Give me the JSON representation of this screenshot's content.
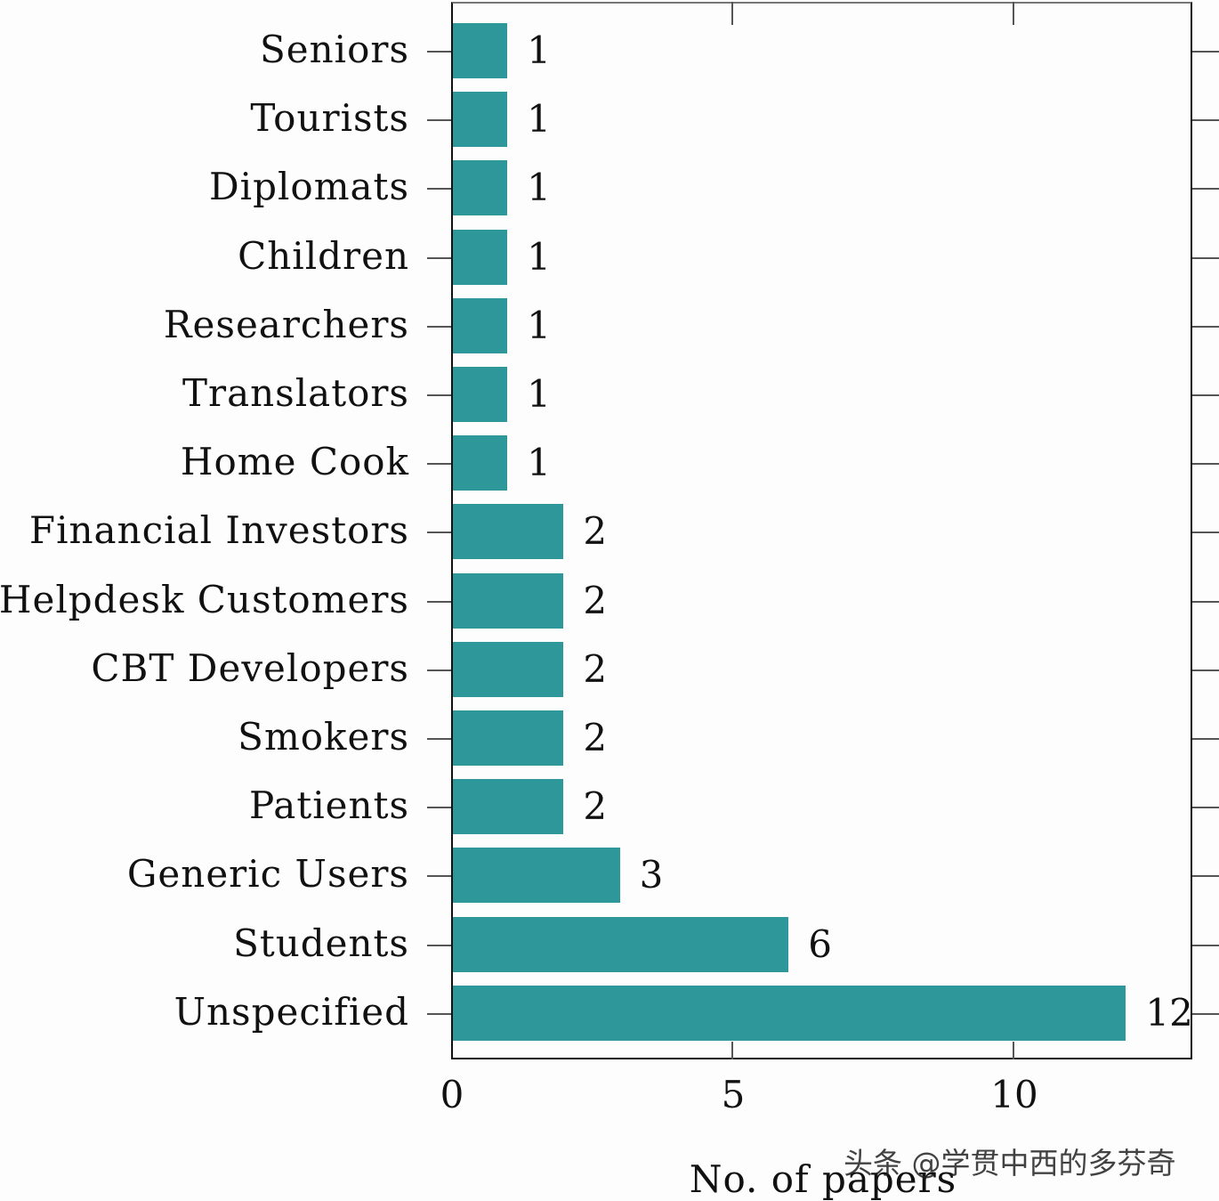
{
  "chart_data": {
    "type": "bar",
    "orientation": "horizontal",
    "title": "",
    "xlabel": "No. of papers",
    "ylabel": "",
    "xlim": [
      0,
      13.2
    ],
    "xticks": [
      0,
      5,
      10
    ],
    "grid": false,
    "legend": null,
    "bar_color": "#2e979a",
    "categories": [
      "Seniors",
      "Tourists",
      "Diplomats",
      "Children",
      "Researchers",
      "Translators",
      "Home Cook",
      "Financial Investors",
      "Helpdesk Customers",
      "CBT Developers",
      "Smokers",
      "Patients",
      "Generic Users",
      "Students",
      "Unspecified"
    ],
    "values": [
      1,
      1,
      1,
      1,
      1,
      1,
      1,
      2,
      2,
      2,
      2,
      2,
      3,
      6,
      12
    ],
    "data_labels": [
      "1",
      "1",
      "1",
      "1",
      "1",
      "1",
      "1",
      "2",
      "2",
      "2",
      "2",
      "2",
      "3",
      "6",
      "12"
    ]
  },
  "axis": {
    "xtick_labels": [
      "0",
      "5",
      "10"
    ],
    "xlabel": "No. of papers"
  },
  "watermark": "头条 @学贯中西的多芬奇"
}
